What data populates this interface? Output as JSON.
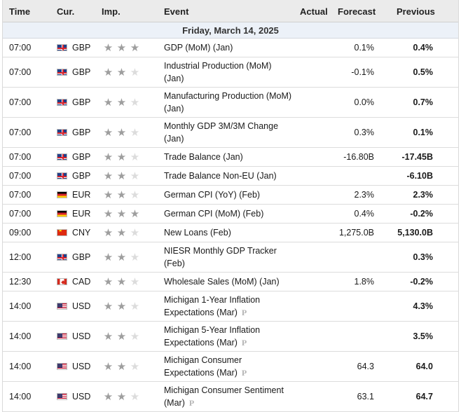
{
  "header": {
    "time": "Time",
    "currency": "Cur.",
    "importance": "Imp.",
    "event": "Event",
    "actual": "Actual",
    "forecast": "Forecast",
    "previous": "Previous"
  },
  "day_label": "Friday, March 14, 2025",
  "prelim_mark": "P",
  "colors": {
    "header_bg": "#ebebeb",
    "day_bg": "#ecf1f8",
    "star_on": "#9e9e9e",
    "star_off": "#dcdcdc"
  },
  "events": [
    {
      "time": "07:00",
      "currency": "GBP",
      "flag": "gb",
      "importance": 3,
      "event_lines": [
        "GDP (MoM) (Jan)"
      ],
      "prelim": false,
      "actual": "",
      "forecast": "0.1%",
      "previous": "0.4%"
    },
    {
      "time": "07:00",
      "currency": "GBP",
      "flag": "gb",
      "importance": 2,
      "event_lines": [
        "Industrial Production (MoM)",
        "(Jan)"
      ],
      "prelim": false,
      "actual": "",
      "forecast": "-0.1%",
      "previous": "0.5%"
    },
    {
      "time": "07:00",
      "currency": "GBP",
      "flag": "gb",
      "importance": 2,
      "event_lines": [
        "Manufacturing Production (MoM)",
        "(Jan)"
      ],
      "prelim": false,
      "actual": "",
      "forecast": "0.0%",
      "previous": "0.7%"
    },
    {
      "time": "07:00",
      "currency": "GBP",
      "flag": "gb",
      "importance": 2,
      "event_lines": [
        "Monthly GDP 3M/3M Change",
        "(Jan)"
      ],
      "prelim": false,
      "actual": "",
      "forecast": "0.3%",
      "previous": "0.1%"
    },
    {
      "time": "07:00",
      "currency": "GBP",
      "flag": "gb",
      "importance": 2,
      "event_lines": [
        "Trade Balance (Jan)"
      ],
      "prelim": false,
      "actual": "",
      "forecast": "-16.80B",
      "previous": "-17.45B"
    },
    {
      "time": "07:00",
      "currency": "GBP",
      "flag": "gb",
      "importance": 2,
      "event_lines": [
        "Trade Balance Non-EU (Jan)"
      ],
      "prelim": false,
      "actual": "",
      "forecast": "",
      "previous": "-6.10B"
    },
    {
      "time": "07:00",
      "currency": "EUR",
      "flag": "de",
      "importance": 2,
      "event_lines": [
        "German CPI (YoY) (Feb)"
      ],
      "prelim": false,
      "actual": "",
      "forecast": "2.3%",
      "previous": "2.3%"
    },
    {
      "time": "07:00",
      "currency": "EUR",
      "flag": "de",
      "importance": 3,
      "event_lines": [
        "German CPI (MoM) (Feb)"
      ],
      "prelim": false,
      "actual": "",
      "forecast": "0.4%",
      "previous": "-0.2%"
    },
    {
      "time": "09:00",
      "currency": "CNY",
      "flag": "cn",
      "importance": 2,
      "event_lines": [
        "New Loans (Feb)"
      ],
      "prelim": false,
      "actual": "",
      "forecast": "1,275.0B",
      "previous": "5,130.0B"
    },
    {
      "time": "12:00",
      "currency": "GBP",
      "flag": "gb",
      "importance": 2,
      "event_lines": [
        "NIESR Monthly GDP Tracker",
        "(Feb)"
      ],
      "prelim": false,
      "actual": "",
      "forecast": "",
      "previous": "0.3%"
    },
    {
      "time": "12:30",
      "currency": "CAD",
      "flag": "ca",
      "importance": 2,
      "event_lines": [
        "Wholesale Sales (MoM) (Jan)"
      ],
      "prelim": false,
      "actual": "",
      "forecast": "1.8%",
      "previous": "-0.2%"
    },
    {
      "time": "14:00",
      "currency": "USD",
      "flag": "us",
      "importance": 2,
      "event_lines": [
        "Michigan 1-Year Inflation",
        "Expectations (Mar)"
      ],
      "prelim": true,
      "actual": "",
      "forecast": "",
      "previous": "4.3%"
    },
    {
      "time": "14:00",
      "currency": "USD",
      "flag": "us",
      "importance": 2,
      "event_lines": [
        "Michigan 5-Year Inflation",
        "Expectations (Mar)"
      ],
      "prelim": true,
      "actual": "",
      "forecast": "",
      "previous": "3.5%"
    },
    {
      "time": "14:00",
      "currency": "USD",
      "flag": "us",
      "importance": 2,
      "event_lines": [
        "Michigan Consumer",
        "Expectations (Mar)"
      ],
      "prelim": true,
      "actual": "",
      "forecast": "64.3",
      "previous": "64.0"
    },
    {
      "time": "14:00",
      "currency": "USD",
      "flag": "us",
      "importance": 2,
      "event_lines": [
        "Michigan Consumer Sentiment",
        "(Mar)"
      ],
      "prelim": true,
      "actual": "",
      "forecast": "63.1",
      "previous": "64.7"
    }
  ]
}
